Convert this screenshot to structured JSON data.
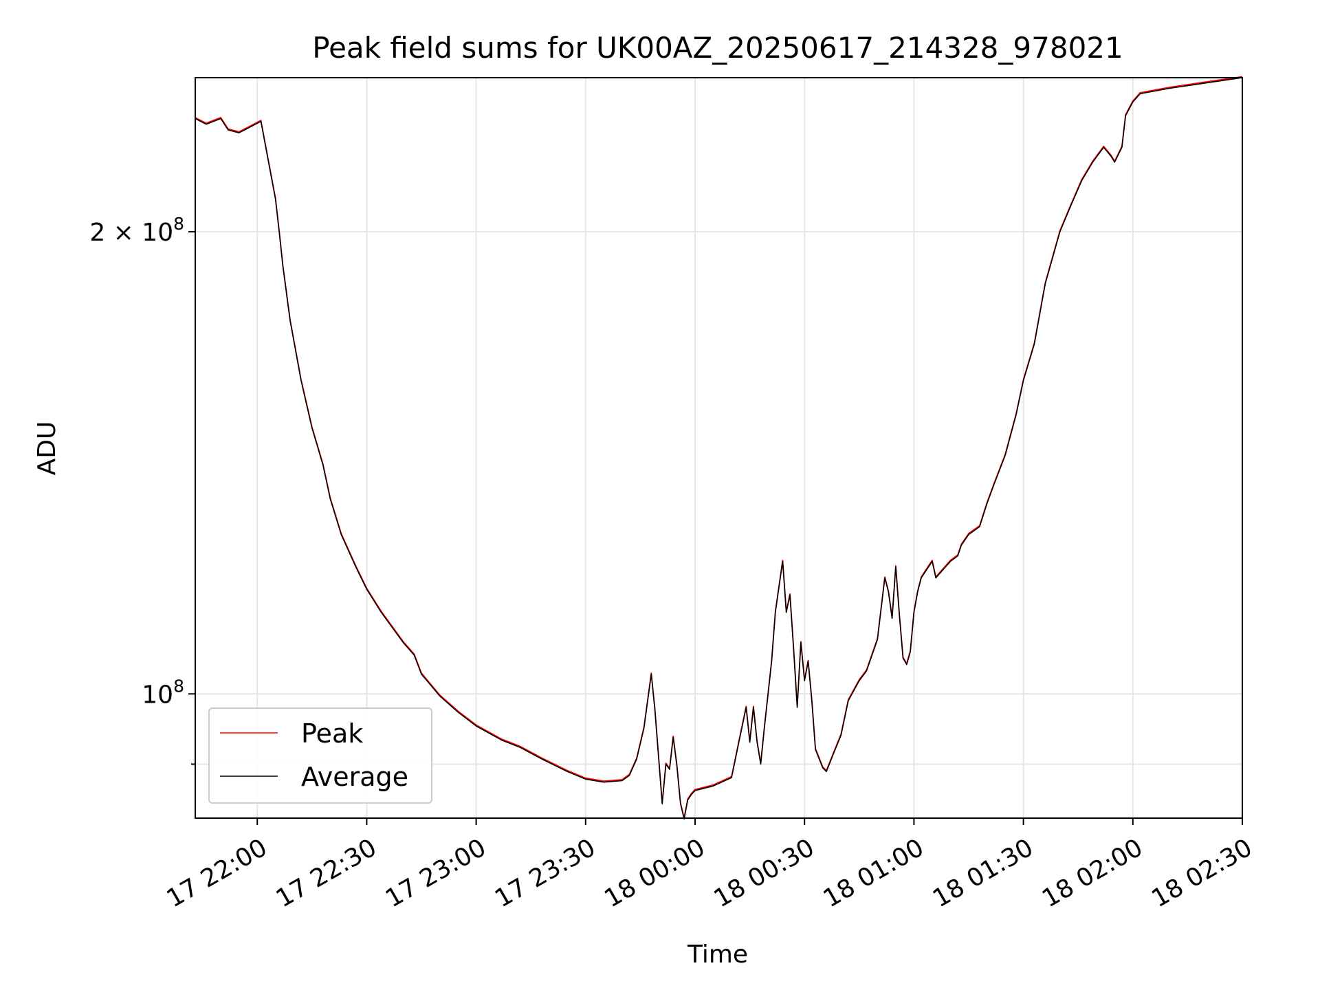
{
  "chart_data": {
    "type": "line",
    "title": "Peak field sums for UK00AZ_20250617_214328_978021",
    "xlabel": "Time",
    "ylabel": "ADU",
    "yscale": "log",
    "ylim": [
      83000000,
      252000000
    ],
    "xlim": [
      "2025-06-17 21:43:00",
      "2025-06-18 02:30:00"
    ],
    "x_ticks": [
      {
        "t": "2025-06-17 22:00",
        "label": "17 22:00"
      },
      {
        "t": "2025-06-17 22:30",
        "label": "17 22:30"
      },
      {
        "t": "2025-06-17 23:00",
        "label": "17 23:00"
      },
      {
        "t": "2025-06-17 23:30",
        "label": "17 23:30"
      },
      {
        "t": "2025-06-18 00:00",
        "label": "18 00:00"
      },
      {
        "t": "2025-06-18 00:30",
        "label": "18 00:30"
      },
      {
        "t": "2025-06-18 01:00",
        "label": "18 01:00"
      },
      {
        "t": "2025-06-18 01:30",
        "label": "18 01:30"
      },
      {
        "t": "2025-06-18 02:00",
        "label": "18 02:00"
      },
      {
        "t": "2025-06-18 02:30",
        "label": "18 02:30"
      }
    ],
    "y_ticks": [
      {
        "value": 200000000,
        "label_base": "2 × 10",
        "label_exp": "8"
      },
      {
        "value": 100000000,
        "label_base": "10",
        "label_exp": "8"
      }
    ],
    "y_minor_ticks": [
      90000000
    ],
    "grid": true,
    "legend": {
      "location": "lower-left",
      "entries": [
        "Peak",
        "Average"
      ]
    },
    "series": [
      {
        "name": "Peak",
        "color": "#ff0000"
      },
      {
        "name": "Average",
        "color": "#000000"
      }
    ],
    "x": [
      "2025-06-17 21:43",
      "2025-06-17 21:46",
      "2025-06-17 21:50",
      "2025-06-17 21:52",
      "2025-06-17 21:55",
      "2025-06-17 21:58",
      "2025-06-17 22:01",
      "2025-06-17 22:05",
      "2025-06-17 22:06",
      "2025-06-17 22:07",
      "2025-06-17 22:09",
      "2025-06-17 22:12",
      "2025-06-17 22:15",
      "2025-06-17 22:18",
      "2025-06-17 22:20",
      "2025-06-17 22:23",
      "2025-06-17 22:27",
      "2025-06-17 22:30",
      "2025-06-17 22:34",
      "2025-06-17 22:40",
      "2025-06-17 22:43",
      "2025-06-17 22:45",
      "2025-06-17 22:50",
      "2025-06-17 22:55",
      "2025-06-17 23:00",
      "2025-06-17 23:07",
      "2025-06-17 23:12",
      "2025-06-17 23:18",
      "2025-06-17 23:25",
      "2025-06-17 23:30",
      "2025-06-17 23:35",
      "2025-06-17 23:40",
      "2025-06-17 23:42",
      "2025-06-17 23:44",
      "2025-06-17 23:46",
      "2025-06-17 23:48",
      "2025-06-17 23:49",
      "2025-06-17 23:51",
      "2025-06-17 23:52",
      "2025-06-17 23:53",
      "2025-06-17 23:54",
      "2025-06-17 23:55",
      "2025-06-17 23:56",
      "2025-06-17 23:57",
      "2025-06-17 23:58",
      "2025-06-17 23:59",
      "2025-06-18 00:00",
      "2025-06-18 00:05",
      "2025-06-18 00:10",
      "2025-06-18 00:12",
      "2025-06-18 00:14",
      "2025-06-18 00:15",
      "2025-06-18 00:16",
      "2025-06-18 00:17",
      "2025-06-18 00:18",
      "2025-06-18 00:19",
      "2025-06-18 00:21",
      "2025-06-18 00:22",
      "2025-06-18 00:24",
      "2025-06-18 00:25",
      "2025-06-18 00:26",
      "2025-06-18 00:27",
      "2025-06-18 00:28",
      "2025-06-18 00:29",
      "2025-06-18 00:30",
      "2025-06-18 00:31",
      "2025-06-18 00:32",
      "2025-06-18 00:33",
      "2025-06-18 00:35",
      "2025-06-18 00:36",
      "2025-06-18 00:38",
      "2025-06-18 00:40",
      "2025-06-18 00:42",
      "2025-06-18 00:45",
      "2025-06-18 00:47",
      "2025-06-18 00:50",
      "2025-06-18 00:52",
      "2025-06-18 00:53",
      "2025-06-18 00:54",
      "2025-06-18 00:55",
      "2025-06-18 00:56",
      "2025-06-18 00:57",
      "2025-06-18 00:58",
      "2025-06-18 00:59",
      "2025-06-18 01:00",
      "2025-06-18 01:01",
      "2025-06-18 01:02",
      "2025-06-18 01:03",
      "2025-06-18 01:05",
      "2025-06-18 01:06",
      "2025-06-18 01:08",
      "2025-06-18 01:10",
      "2025-06-18 01:12",
      "2025-06-18 01:13",
      "2025-06-18 01:15",
      "2025-06-18 01:18",
      "2025-06-18 01:20",
      "2025-06-18 01:22",
      "2025-06-18 01:25",
      "2025-06-18 01:28",
      "2025-06-18 01:30",
      "2025-06-18 01:33",
      "2025-06-18 01:36",
      "2025-06-18 01:40",
      "2025-06-18 01:43",
      "2025-06-18 01:46",
      "2025-06-18 01:49",
      "2025-06-18 01:52",
      "2025-06-18 01:54",
      "2025-06-18 01:55",
      "2025-06-18 01:57",
      "2025-06-18 01:58",
      "2025-06-18 02:00",
      "2025-06-18 02:02",
      "2025-06-18 02:10",
      "2025-06-18 02:20",
      "2025-06-18 02:30"
    ],
    "values": [
      237000000,
      235000000,
      237000000,
      233000000,
      232000000,
      234000000,
      236000000,
      210000000,
      200000000,
      190000000,
      175000000,
      160000000,
      149000000,
      141000000,
      134000000,
      127000000,
      121000000,
      117000000,
      113000000,
      108000000,
      106000000,
      103000000,
      99700000,
      97300000,
      95300000,
      93300000,
      92300000,
      90700000,
      89000000,
      88000000,
      87600000,
      87800000,
      88500000,
      90700000,
      95000000,
      103000000,
      97600000,
      84800000,
      90000000,
      89300000,
      93700000,
      89800000,
      84800000,
      82900000,
      85300000,
      86000000,
      86500000,
      87100000,
      88200000,
      93000000,
      98000000,
      93000000,
      98000000,
      93000000,
      90000000,
      95000000,
      105000000,
      113000000,
      122000000,
      113000000,
      116000000,
      107000000,
      98000000,
      108000000,
      102000000,
      105000000,
      99000000,
      92000000,
      89500000,
      89000000,
      91500000,
      94000000,
      99000000,
      102000000,
      103500000,
      108500000,
      119000000,
      116500000,
      112000000,
      121000000,
      112500000,
      105500000,
      104500000,
      106500000,
      113000000,
      116500000,
      119000000,
      120000000,
      122000000,
      119000000,
      120500000,
      122000000,
      123000000,
      125000000,
      127000000,
      128500000,
      133000000,
      137000000,
      143000000,
      152000000,
      160000000,
      169000000,
      185000000,
      200000000,
      208000000,
      216000000,
      222000000,
      227000000,
      224000000,
      222000000,
      227000000,
      238000000,
      243000000,
      246000000,
      248000000,
      250000000,
      252000000
    ]
  }
}
